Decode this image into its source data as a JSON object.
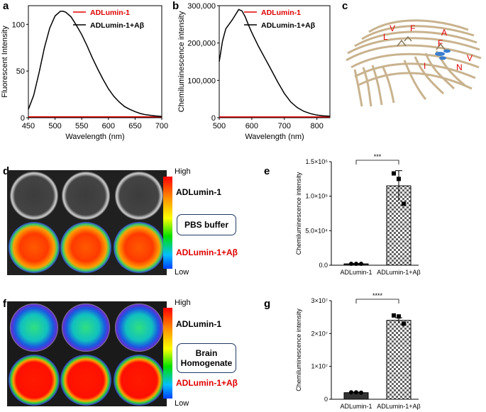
{
  "panels": {
    "a": "a",
    "b": "b",
    "c": "c",
    "d": "d",
    "e": "e",
    "f": "f",
    "g": "g"
  },
  "colors": {
    "adlumin": "#e00000",
    "adlumin_abeta": "#000000"
  },
  "structure_labels": [
    "V",
    "F",
    "A",
    "L",
    "F",
    "V",
    "N",
    "I"
  ],
  "colorbar": {
    "high": "High",
    "low": "Low"
  },
  "image_d": {
    "label_top": "ADLumin-1",
    "label_bottom": "ADLumin-1+Aβ",
    "box_text_1": "PBS buffer",
    "box_text_2": ""
  },
  "image_f": {
    "label_top": "ADLumin-1",
    "label_bottom": "ADLumin-1+Aβ",
    "box_text_1": "Brain",
    "box_text_2": "Homogenate"
  },
  "chart_data": [
    {
      "panel": "a",
      "type": "line",
      "xlabel": "Wavelength (nm)",
      "ylabel": "Fluorescent Intensity",
      "xlim": [
        450,
        700
      ],
      "ylim": [
        0,
        120
      ],
      "xticks": [
        "450",
        "500",
        "550",
        "600",
        "650",
        "700"
      ],
      "yticks": [
        "0",
        "50",
        "100"
      ],
      "legend_position": "top-right",
      "series": [
        {
          "name": "ADLumin-1",
          "color": "#e00000",
          "x": [
            450,
            500,
            550,
            600,
            650,
            700
          ],
          "y": [
            1,
            1,
            1,
            1,
            1,
            1
          ]
        },
        {
          "name": "ADLumin-1+Aβ",
          "color": "#000000",
          "x": [
            450,
            460,
            470,
            480,
            490,
            500,
            510,
            515,
            520,
            530,
            540,
            550,
            560,
            570,
            580,
            590,
            600,
            610,
            620,
            630,
            640,
            650,
            660,
            670,
            680,
            690,
            700
          ],
          "y": [
            9,
            24,
            48,
            75,
            96,
            109,
            114,
            114,
            113,
            108,
            99,
            89,
            77,
            64,
            52,
            41,
            31,
            23,
            17,
            12,
            9,
            6.5,
            4.5,
            3.2,
            2.4,
            1.8,
            1.3
          ]
        }
      ]
    },
    {
      "panel": "b",
      "type": "line",
      "xlabel": "Wavelength (nm)",
      "ylabel": "Chemiluminescence intensity",
      "xlim": [
        500,
        840
      ],
      "ylim": [
        0,
        300000
      ],
      "xticks": [
        "500",
        "600",
        "700",
        "800"
      ],
      "yticks": [
        "0",
        "100,000",
        "200,000",
        "300,000"
      ],
      "legend_position": "top-right",
      "series": [
        {
          "name": "ADLumin-1",
          "color": "#e00000",
          "x": [
            500,
            600,
            700,
            800,
            840
          ],
          "y": [
            2000,
            2000,
            2000,
            2000,
            2000
          ]
        },
        {
          "name": "ADLumin-1+Aβ",
          "color": "#000000",
          "x": [
            500,
            510,
            520,
            540,
            560,
            570,
            580,
            590,
            600,
            620,
            640,
            660,
            680,
            700,
            720,
            740,
            760,
            780,
            800,
            820,
            840
          ],
          "y": [
            150000,
            205000,
            238000,
            262000,
            290000,
            286000,
            270000,
            248000,
            228000,
            192000,
            160000,
            128000,
            95000,
            65000,
            42000,
            27000,
            17000,
            11000,
            7000,
            5000,
            4000
          ]
        }
      ]
    },
    {
      "panel": "e",
      "type": "bar",
      "ylabel": "Chemiluminescence intensity",
      "categories": [
        "ADLumin-1",
        "ADLumin-1+Aβ"
      ],
      "values": [
        2000,
        115000
      ],
      "error": [
        500,
        22000
      ],
      "points": [
        [
          2000,
          2000,
          2000
        ],
        [
          133000,
          125000,
          89000
        ]
      ],
      "ylim": [
        0,
        150000
      ],
      "yticks": [
        "0.0",
        "5.0×10⁴",
        "1.0×10⁵",
        "1.5×10⁵"
      ],
      "significance": "***"
    },
    {
      "panel": "g",
      "type": "bar",
      "ylabel": "Chemiluminescence intensity",
      "categories": [
        "ADLumin-1",
        "ADLumin-1+Aβ"
      ],
      "values": [
        2000000,
        24000000
      ],
      "error": [
        150000,
        800000
      ],
      "points": [
        [
          2100000,
          2100000,
          2000000
        ],
        [
          25500000,
          25200000,
          23000000
        ]
      ],
      "ylim": [
        0,
        30000000
      ],
      "yticks": [
        "0",
        "1×10⁷",
        "2×10⁷",
        "3×10⁷"
      ],
      "significance": "****"
    }
  ]
}
